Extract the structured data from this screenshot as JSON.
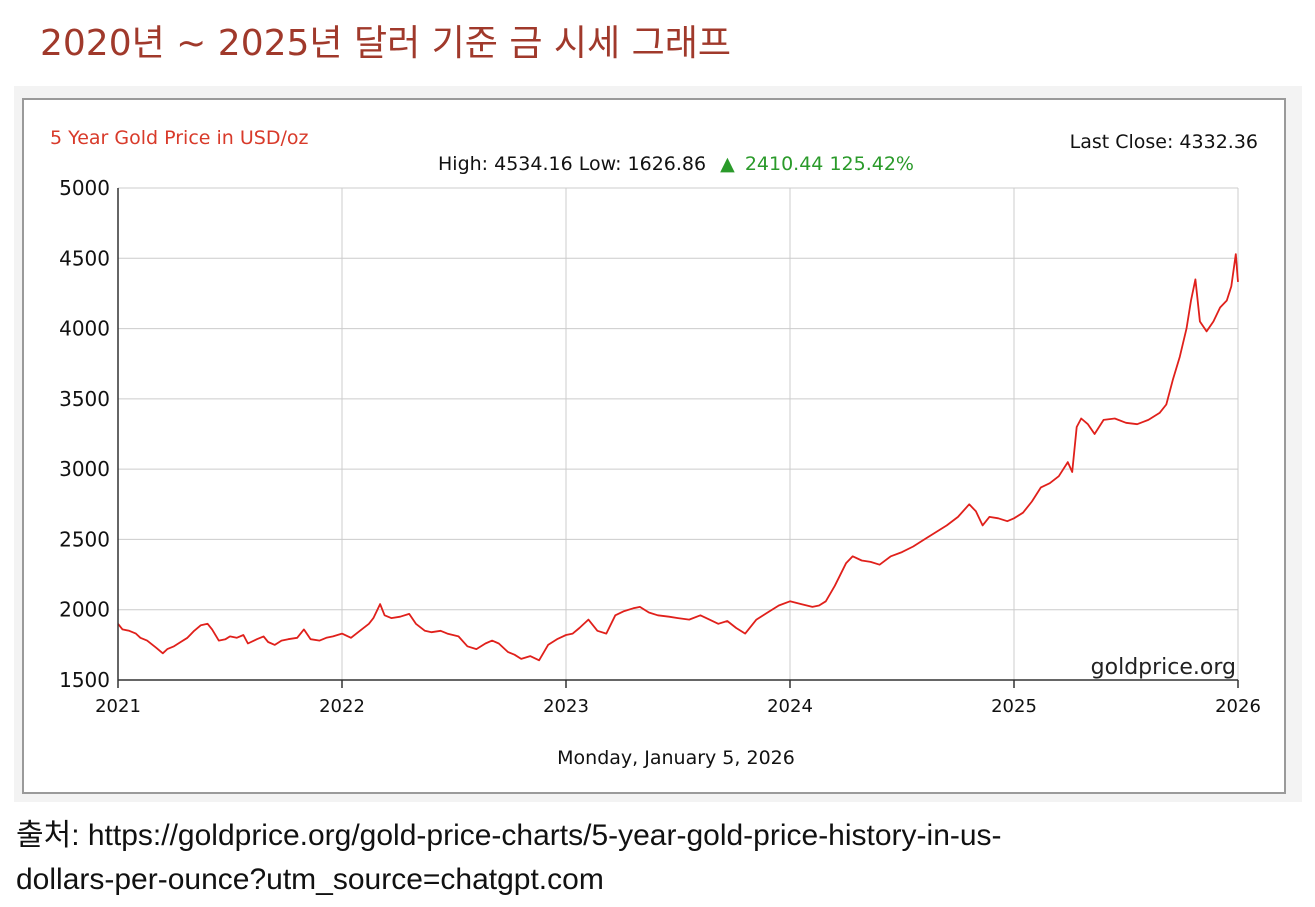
{
  "page": {
    "title": "2020년 ~ 2025년 달러 기준 금 시세 그래프",
    "source_line1": "출처: https://goldprice.org/gold-price-charts/5-year-gold-price-history-in-us-",
    "source_line2": "dollars-per-ounce?utm_source=chatgpt.com"
  },
  "chart_data": {
    "type": "line",
    "title": "5 Year Gold Price in USD/oz",
    "last_close_text": "Last Close: 4332.36",
    "stats": {
      "high_low_text": "High: 4534.16 Low: 1626.86",
      "change_arrow": "▲",
      "change_text": "2410.44 125.42%"
    },
    "footer_date": "Monday, January 5, 2026",
    "watermark": "goldprice.org",
    "xlabel": "",
    "ylabel": "",
    "xlim": [
      2021,
      2026
    ],
    "ylim": [
      1500,
      5000
    ],
    "x_ticks": [
      "2021",
      "2022",
      "2023",
      "2024",
      "2025",
      "2026"
    ],
    "y_ticks": [
      "5000",
      "4500",
      "4000",
      "3500",
      "3000",
      "2500",
      "2000",
      "1500"
    ],
    "grid": true,
    "colors": {
      "line": "#e0201b",
      "title": "#d83a2a",
      "change": "#2a9a2a",
      "grid": "#cccccc"
    },
    "series": [
      {
        "x": [
          2021.0,
          2021.02,
          2021.05,
          2021.08,
          2021.1,
          2021.13,
          2021.17,
          2021.2,
          2021.22,
          2021.25,
          2021.28,
          2021.31,
          2021.34,
          2021.37,
          2021.4,
          2021.42,
          2021.45,
          2021.48,
          2021.5,
          2021.53,
          2021.56,
          2021.58,
          2021.62,
          2021.65,
          2021.67,
          2021.7,
          2021.73,
          2021.76,
          2021.8,
          2021.83,
          2021.86,
          2021.9,
          2021.93,
          2021.96,
          2022.0,
          2022.04,
          2022.08,
          2022.12,
          2022.14,
          2022.17,
          2022.19,
          2022.22,
          2022.26,
          2022.3,
          2022.33,
          2022.37,
          2022.4,
          2022.44,
          2022.47,
          2022.52,
          2022.56,
          2022.6,
          2022.64,
          2022.67,
          2022.7,
          2022.74,
          2022.77,
          2022.8,
          2022.84,
          2022.88,
          2022.92,
          2022.96,
          2023.0,
          2023.03,
          2023.06,
          2023.1,
          2023.14,
          2023.18,
          2023.22,
          2023.26,
          2023.3,
          2023.33,
          2023.37,
          2023.41,
          2023.46,
          2023.5,
          2023.55,
          2023.6,
          2023.64,
          2023.68,
          2023.72,
          2023.76,
          2023.8,
          2023.85,
          2023.9,
          2023.95,
          2024.0,
          2024.05,
          2024.1,
          2024.13,
          2024.16,
          2024.2,
          2024.25,
          2024.28,
          2024.32,
          2024.36,
          2024.4,
          2024.45,
          2024.5,
          2024.55,
          2024.6,
          2024.65,
          2024.7,
          2024.75,
          2024.8,
          2024.83,
          2024.86,
          2024.89,
          2024.93,
          2024.97,
          2025.0,
          2025.04,
          2025.08,
          2025.12,
          2025.16,
          2025.2,
          2025.24,
          2025.26,
          2025.28,
          2025.3,
          2025.33,
          2025.36,
          2025.4,
          2025.45,
          2025.5,
          2025.55,
          2025.6,
          2025.65,
          2025.68,
          2025.71,
          2025.74,
          2025.77,
          2025.79,
          2025.81,
          2025.83,
          2025.86,
          2025.89,
          2025.92,
          2025.95,
          2025.97,
          2025.99,
          2026.0
        ],
        "y": [
          1900,
          1860,
          1850,
          1830,
          1800,
          1780,
          1730,
          1690,
          1720,
          1740,
          1770,
          1800,
          1850,
          1890,
          1900,
          1860,
          1780,
          1790,
          1810,
          1800,
          1820,
          1760,
          1790,
          1810,
          1770,
          1750,
          1780,
          1790,
          1800,
          1860,
          1790,
          1780,
          1800,
          1810,
          1830,
          1800,
          1850,
          1900,
          1940,
          2040,
          1960,
          1940,
          1950,
          1970,
          1900,
          1850,
          1840,
          1850,
          1830,
          1810,
          1740,
          1720,
          1760,
          1780,
          1760,
          1700,
          1680,
          1650,
          1670,
          1640,
          1750,
          1790,
          1820,
          1830,
          1870,
          1930,
          1850,
          1830,
          1960,
          1990,
          2010,
          2020,
          1980,
          1960,
          1950,
          1940,
          1930,
          1960,
          1930,
          1900,
          1920,
          1870,
          1830,
          1930,
          1980,
          2030,
          2060,
          2040,
          2020,
          2030,
          2060,
          2170,
          2330,
          2380,
          2350,
          2340,
          2320,
          2380,
          2410,
          2450,
          2500,
          2550,
          2600,
          2660,
          2750,
          2700,
          2600,
          2660,
          2650,
          2630,
          2650,
          2690,
          2770,
          2870,
          2900,
          2950,
          3050,
          2980,
          3300,
          3360,
          3320,
          3250,
          3350,
          3360,
          3330,
          3320,
          3350,
          3400,
          3460,
          3640,
          3800,
          4000,
          4200,
          4350,
          4050,
          3980,
          4050,
          4150,
          4200,
          4300,
          4530,
          4332
        ]
      }
    ]
  }
}
